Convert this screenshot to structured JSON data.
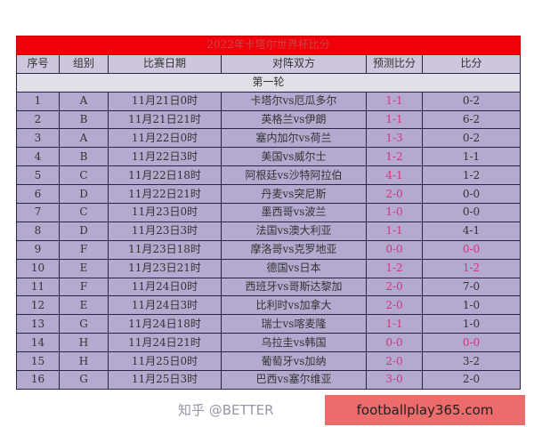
{
  "title": "2022年卡塔尔世界杯比分",
  "headers": [
    "序号",
    "组别",
    "比赛日期",
    "对阵双方",
    "预测比分",
    "比分"
  ],
  "round": "第一轮",
  "rows": [
    [
      "1",
      "A",
      "11月21日0时",
      "卡塔尔vs厄瓜多尔",
      "1-1",
      "0-2"
    ],
    [
      "2",
      "B",
      "11月21日21时",
      "英格兰vs伊朗",
      "1-1",
      "6-2"
    ],
    [
      "3",
      "A",
      "11月22日0时",
      "塞内加尔vs荷兰",
      "1-3",
      "0-2"
    ],
    [
      "4",
      "B",
      "11月22日3时",
      "美国vs威尔士",
      "1-2",
      "1-1"
    ],
    [
      "5",
      "C",
      "11月22日18时",
      "阿根廷vs沙特阿拉伯",
      "4-1",
      "1-2"
    ],
    [
      "6",
      "D",
      "11月22日21时",
      "丹麦vs突尼斯",
      "2-0",
      "0-0"
    ],
    [
      "7",
      "C",
      "11月23日0时",
      "墨西哥vs波兰",
      "1-0",
      "0-0"
    ],
    [
      "8",
      "D",
      "11月23日3时",
      "法国vs澳大利亚",
      "1-1",
      "4-1"
    ],
    [
      "9",
      "F",
      "11月23日18时",
      "摩洛哥vs克罗地亚",
      "0-0",
      "0-0"
    ],
    [
      "10",
      "E",
      "11月23日21时",
      "德国vs日本",
      "1-2",
      "1-2"
    ],
    [
      "11",
      "F",
      "11月24日0时",
      "西班牙vs哥斯达黎加",
      "2-0",
      "7-0"
    ],
    [
      "12",
      "E",
      "11月24日3时",
      "比利时vs加拿大",
      "2-0",
      "1-0"
    ],
    [
      "13",
      "G",
      "11月24日18时",
      "瑞士vs喀麦隆",
      "1-1",
      "1-0"
    ],
    [
      "14",
      "H",
      "11月24日21时",
      "乌拉圭vs韩国",
      "0-0",
      "0-0"
    ],
    [
      "15",
      "H",
      "11月25日0时",
      "葡萄牙vs加纳",
      "2-0",
      "3-2"
    ],
    [
      "16",
      "G",
      "11月25日3时",
      "巴西vs塞尔维亚",
      "3-0",
      "2-0"
    ]
  ],
  "highlighted_scores": [
    "9",
    "10",
    "14"
  ],
  "watermark": "知乎 @BETTER",
  "ad_text": "footballplay365.com",
  "colors": {
    "title_bg": "#f0000a",
    "row_bg": "#b4a9cf",
    "prediction_text": "#d4347a"
  }
}
